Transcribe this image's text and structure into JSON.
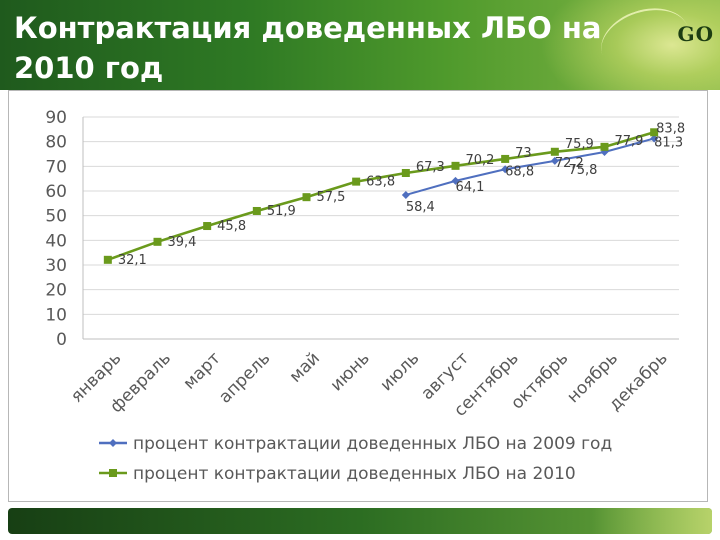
{
  "slide": {
    "title": "Контрактация доведенных ЛБО на 2010 год",
    "logo": "GO"
  },
  "colors": {
    "series_2009": "#4f6fbf",
    "series_2010": "#6a9a1c",
    "grid": "#d9d9d9",
    "axis_text": "#595959"
  },
  "chart_data": {
    "type": "line",
    "categories": [
      "январь",
      "февраль",
      "март",
      "апрель",
      "май",
      "июнь",
      "июль",
      "август",
      "сентябрь",
      "октябрь",
      "ноябрь",
      "декабрь"
    ],
    "ylim": [
      0,
      90
    ],
    "yticks": [
      "0",
      "10",
      "20",
      "30",
      "40",
      "50",
      "60",
      "70",
      "80",
      "90"
    ],
    "grid": true,
    "legend": "bottom",
    "series": [
      {
        "name": "процент контрактации доведенных ЛБО на 2009 год",
        "values": [
          null,
          null,
          null,
          null,
          null,
          null,
          58.4,
          64.1,
          68.8,
          72.2,
          75.8,
          81.3
        ],
        "labels": [
          "",
          "",
          "",
          "",
          "",
          "",
          "58,4",
          "64,1",
          "68,8",
          "72,2",
          "75,8",
          "81,3"
        ],
        "marker": "diamond"
      },
      {
        "name": "процент контрактации доведенных ЛБО на 2010",
        "values": [
          32.1,
          39.4,
          45.8,
          51.9,
          57.5,
          63.8,
          67.3,
          70.2,
          73,
          75.9,
          77.9,
          83.8
        ],
        "labels": [
          "32,1",
          "39,4",
          "45,8",
          "51,9",
          "57,5",
          "63,8",
          "67,3",
          "70,2",
          "73",
          "75,9",
          "77,9",
          "83,8"
        ],
        "marker": "square"
      }
    ]
  }
}
